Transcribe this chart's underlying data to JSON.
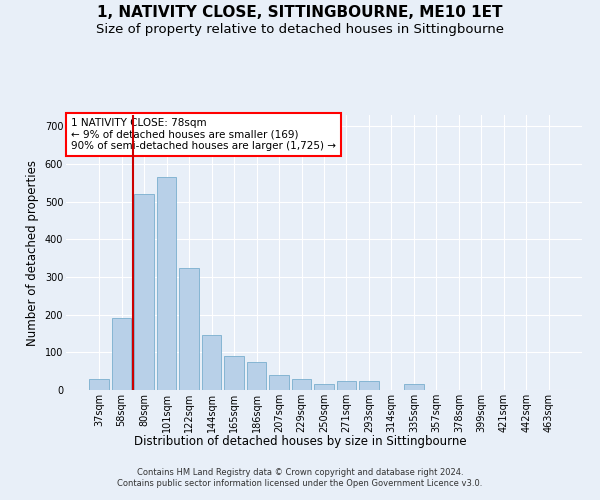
{
  "title": "1, NATIVITY CLOSE, SITTINGBOURNE, ME10 1ET",
  "subtitle": "Size of property relative to detached houses in Sittingbourne",
  "xlabel": "Distribution of detached houses by size in Sittingbourne",
  "ylabel": "Number of detached properties",
  "footer_line1": "Contains HM Land Registry data © Crown copyright and database right 2024.",
  "footer_line2": "Contains public sector information licensed under the Open Government Licence v3.0.",
  "categories": [
    "37sqm",
    "58sqm",
    "80sqm",
    "101sqm",
    "122sqm",
    "144sqm",
    "165sqm",
    "186sqm",
    "207sqm",
    "229sqm",
    "250sqm",
    "271sqm",
    "293sqm",
    "314sqm",
    "335sqm",
    "357sqm",
    "378sqm",
    "399sqm",
    "421sqm",
    "442sqm",
    "463sqm"
  ],
  "values": [
    30,
    190,
    520,
    565,
    325,
    145,
    90,
    75,
    40,
    30,
    15,
    25,
    25,
    0,
    15,
    0,
    0,
    0,
    0,
    0,
    0
  ],
  "bar_facecolor": "#b8d0e8",
  "bar_edgecolor": "#7aaece",
  "redline_x": 1.5,
  "redline_color": "#cc0000",
  "annotation_text": "1 NATIVITY CLOSE: 78sqm\n← 9% of detached houses are smaller (169)\n90% of semi-detached houses are larger (1,725) →",
  "ylim": [
    0,
    730
  ],
  "yticks": [
    0,
    100,
    200,
    300,
    400,
    500,
    600,
    700
  ],
  "bg_color": "#e8eff8",
  "grid_color": "#ffffff",
  "title_fontsize": 11,
  "subtitle_fontsize": 9.5,
  "tick_fontsize": 7,
  "axis_label_fontsize": 8.5,
  "footer_fontsize": 6
}
